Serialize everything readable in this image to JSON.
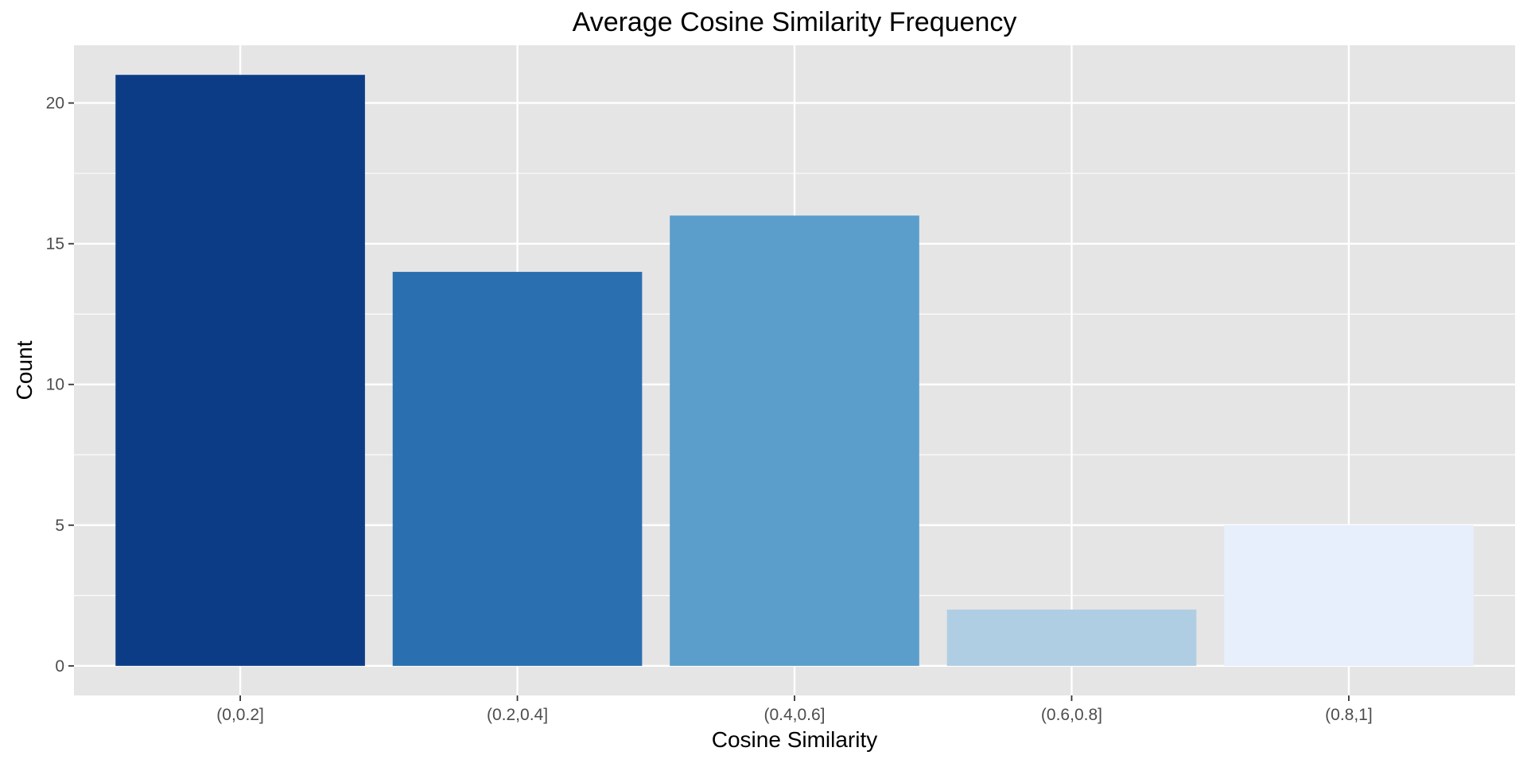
{
  "chart_data": {
    "type": "bar",
    "title": "Average Cosine Similarity Frequency",
    "xlabel": "Cosine Similarity",
    "ylabel": "Count",
    "categories": [
      "(0,0.2]",
      "(0.2,0.4]",
      "(0.4,0.6]",
      "(0.6,0.8]",
      "(0.8,1]"
    ],
    "values": [
      21,
      14,
      16,
      2,
      5
    ],
    "colors": [
      "#0d3c87",
      "#2a6fb0",
      "#5b9ecb",
      "#afcee4",
      "#e7eefc"
    ],
    "ylim": [
      -1.05,
      22.05
    ],
    "yticks": [
      0,
      5,
      10,
      15,
      20
    ],
    "grid": true,
    "panel_background": "#e5e5e5",
    "legend": "none"
  }
}
